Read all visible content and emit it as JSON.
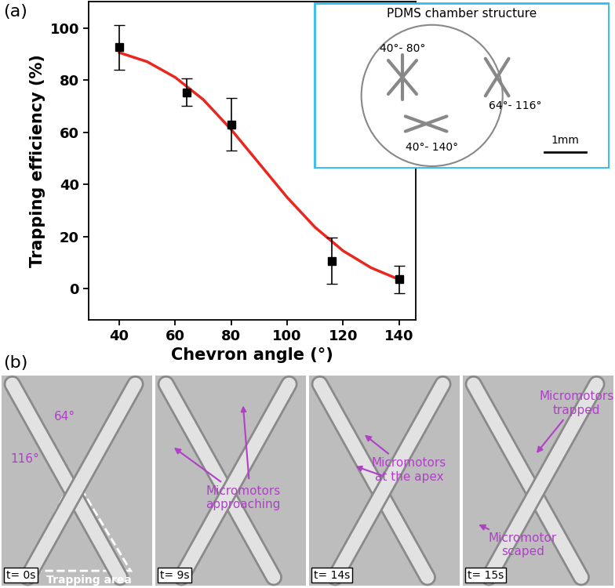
{
  "panel_labels": [
    "(a)",
    "(b)"
  ],
  "chart_data": {
    "type": "scatter",
    "x_label": "Chevron angle (°)",
    "y_label": "Trapping efficiency (%)",
    "xlim": [
      29,
      146
    ],
    "ylim": [
      -12,
      110
    ],
    "xticks": [
      40,
      60,
      80,
      100,
      120,
      140
    ],
    "yticks": [
      0,
      20,
      40,
      60,
      80,
      100
    ],
    "series": [
      {
        "type": "scatter",
        "color": "#000000",
        "marker": "square",
        "x": [
          40,
          64,
          80,
          116,
          140
        ],
        "values": [
          92.5,
          75.3,
          63,
          10.7,
          3.5
        ],
        "errors": [
          8.5,
          5.2,
          10,
          9,
          5.3
        ]
      },
      {
        "type": "line",
        "color": "#e8281e",
        "line_style": "solid",
        "x": [
          40,
          50,
          60,
          70,
          80,
          90,
          100,
          110,
          120,
          130,
          140
        ],
        "values": [
          90.5,
          87,
          81,
          72.5,
          61,
          48,
          35,
          23.5,
          14.5,
          8,
          3.5
        ]
      }
    ]
  },
  "inset": {
    "title": "PDMS chamber structure",
    "chevrons": [
      "40°- 80°",
      "64°- 116°",
      "40°- 140°"
    ],
    "scale_bar": "1mm"
  },
  "frames": [
    {
      "time": "t= 0s",
      "annotations": [
        "64°",
        "116°",
        "Trapping area"
      ]
    },
    {
      "time": "t= 9s",
      "annotations": [
        "Micromotors\napproaching"
      ]
    },
    {
      "time": "t= 14s",
      "annotations": [
        "Micromotors\nat the apex"
      ]
    },
    {
      "time": "t= 15s",
      "annotations": [
        "Micromotors\ntrapped",
        "Micromotor\nscaped"
      ]
    }
  ]
}
